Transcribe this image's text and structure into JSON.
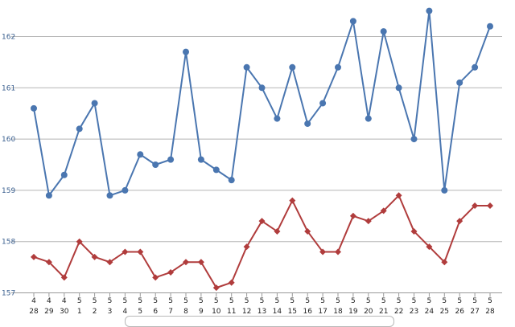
{
  "chart_data": {
    "type": "line",
    "title": "",
    "xlabel": "",
    "ylabel": "",
    "x": [
      "4/28",
      "4/29",
      "4/30",
      "5/1",
      "5/2",
      "5/3",
      "5/4",
      "5/5",
      "5/6",
      "5/7",
      "5/8",
      "5/9",
      "5/10",
      "5/11",
      "5/12",
      "5/13",
      "5/14",
      "5/15",
      "5/16",
      "5/17",
      "5/18",
      "5/19",
      "5/20",
      "5/21",
      "5/22",
      "5/23",
      "5/24",
      "5/25",
      "5/26",
      "5/27",
      "5/28"
    ],
    "x_tick_labels": [
      {
        "top": "4",
        "bottom": "28"
      },
      {
        "top": "4",
        "bottom": "29"
      },
      {
        "top": "4",
        "bottom": "30"
      },
      {
        "top": "5",
        "bottom": "1"
      },
      {
        "top": "5",
        "bottom": "2"
      },
      {
        "top": "5",
        "bottom": "3"
      },
      {
        "top": "5",
        "bottom": "4"
      },
      {
        "top": "5",
        "bottom": "5"
      },
      {
        "top": "5",
        "bottom": "6"
      },
      {
        "top": "5",
        "bottom": "7"
      },
      {
        "top": "5",
        "bottom": "8"
      },
      {
        "top": "5",
        "bottom": "9"
      },
      {
        "top": "5",
        "bottom": "10"
      },
      {
        "top": "5",
        "bottom": "11"
      },
      {
        "top": "5",
        "bottom": "12"
      },
      {
        "top": "5",
        "bottom": "13"
      },
      {
        "top": "5",
        "bottom": "14"
      },
      {
        "top": "5",
        "bottom": "15"
      },
      {
        "top": "5",
        "bottom": "16"
      },
      {
        "top": "5",
        "bottom": "17"
      },
      {
        "top": "5",
        "bottom": "18"
      },
      {
        "top": "5",
        "bottom": "19"
      },
      {
        "top": "5",
        "bottom": "20"
      },
      {
        "top": "5",
        "bottom": "21"
      },
      {
        "top": "5",
        "bottom": "22"
      },
      {
        "top": "5",
        "bottom": "23"
      },
      {
        "top": "5",
        "bottom": "24"
      },
      {
        "top": "5",
        "bottom": "25"
      },
      {
        "top": "5",
        "bottom": "26"
      },
      {
        "top": "5",
        "bottom": "27"
      },
      {
        "top": "5",
        "bottom": "28"
      }
    ],
    "y_ticks": [
      "157",
      "158",
      "159",
      "160",
      "161",
      "162"
    ],
    "ylim": [
      157,
      162.5
    ],
    "grid": true,
    "series": [
      {
        "marker": "circle",
        "color": "#4a76b0",
        "values": [
          160.6,
          158.9,
          159.3,
          160.2,
          160.7,
          158.9,
          159.0,
          159.7,
          159.5,
          159.6,
          161.7,
          159.6,
          159.4,
          159.2,
          161.4,
          161.0,
          160.4,
          161.4,
          160.3,
          160.7,
          161.4,
          162.3,
          160.4,
          162.1,
          161.0,
          160.0,
          162.5,
          159.0,
          161.1,
          161.4,
          162.2
        ]
      },
      {
        "marker": "diamond",
        "color": "#b03c3c",
        "values": [
          157.7,
          157.6,
          157.3,
          158.0,
          157.7,
          157.6,
          157.8,
          157.8,
          157.3,
          157.4,
          157.6,
          157.6,
          157.1,
          157.2,
          157.9,
          158.4,
          158.2,
          158.8,
          158.2,
          157.8,
          157.8,
          158.5,
          158.4,
          158.6,
          158.9,
          158.2,
          157.9,
          157.6,
          158.4,
          158.7,
          158.7
        ]
      }
    ]
  }
}
